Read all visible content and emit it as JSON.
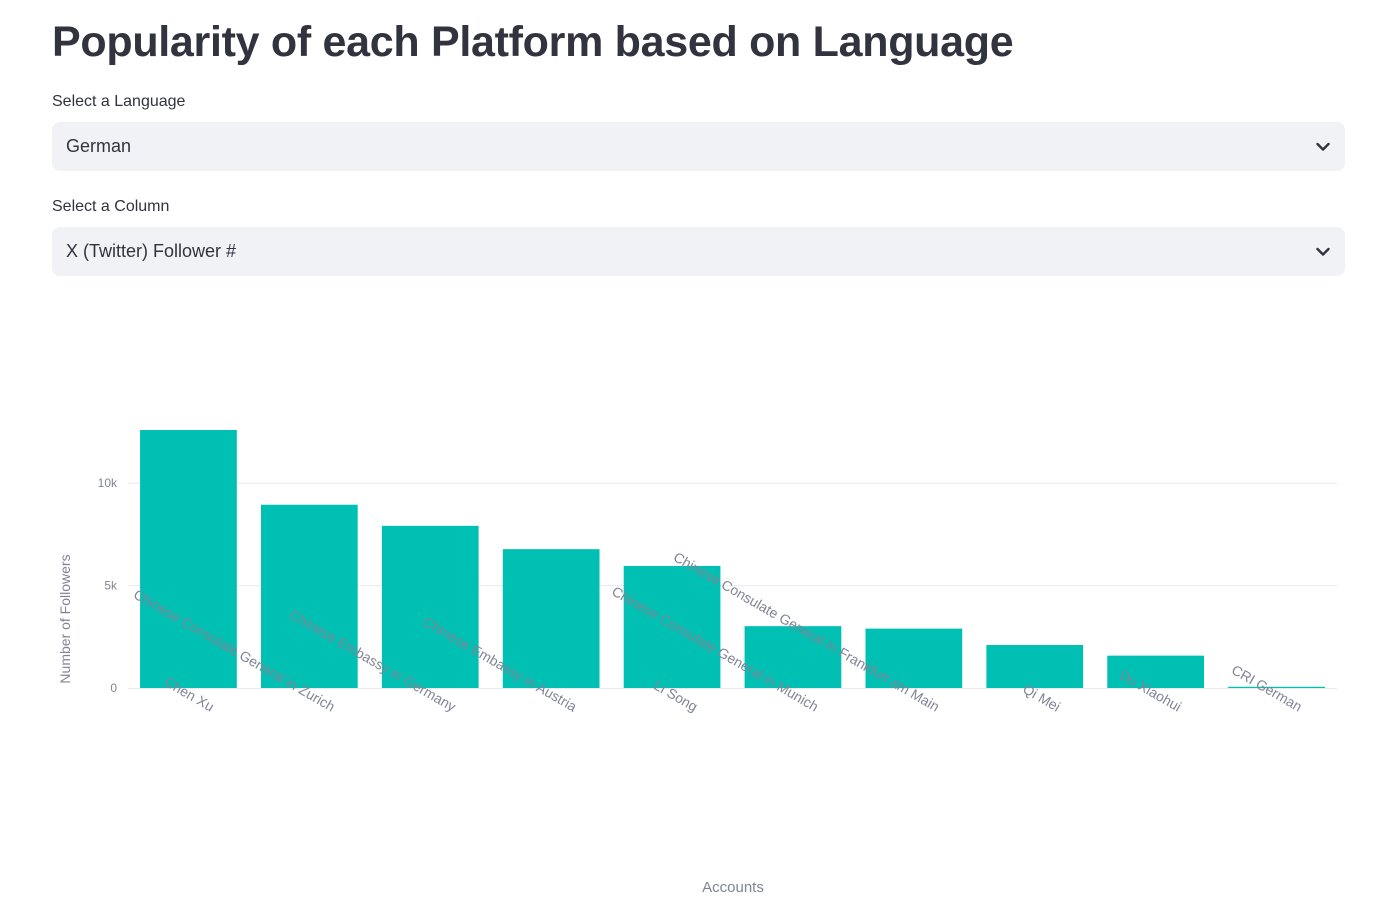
{
  "page": {
    "title": "Popularity of each Platform based on Language"
  },
  "language_select": {
    "label": "Select a Language",
    "value": "German"
  },
  "column_select": {
    "label": "Select a Column",
    "value": "X (Twitter) Follower #"
  },
  "icons": {
    "dropdown": "chevron-down-icon"
  },
  "colors": {
    "bar": "#00bfb3",
    "grid": "#e6e9ef",
    "axis_text": "#808495"
  },
  "chart_data": {
    "type": "bar",
    "title": "",
    "xlabel": "Accounts",
    "ylabel": "Number of Followers",
    "ylim": [
      0,
      12600
    ],
    "yticks": [
      0,
      5000,
      10000
    ],
    "ytick_labels": [
      "0",
      "5k",
      "10k"
    ],
    "grid": true,
    "categories": [
      "Chen Xu",
      "Chinese Consulate General in Zurich",
      "Chinese Embassy in Germany",
      "Chinese Embassy in Austria",
      "Li Song",
      "Chinese Consulate General in Munich",
      "Chinese Consulate General in Frankfurt am Main",
      "Qi Mei",
      "Du Xiaohui",
      "CRI German"
    ],
    "values": [
      12600,
      8950,
      7920,
      6780,
      5960,
      3020,
      2900,
      2100,
      1580,
      60
    ]
  }
}
